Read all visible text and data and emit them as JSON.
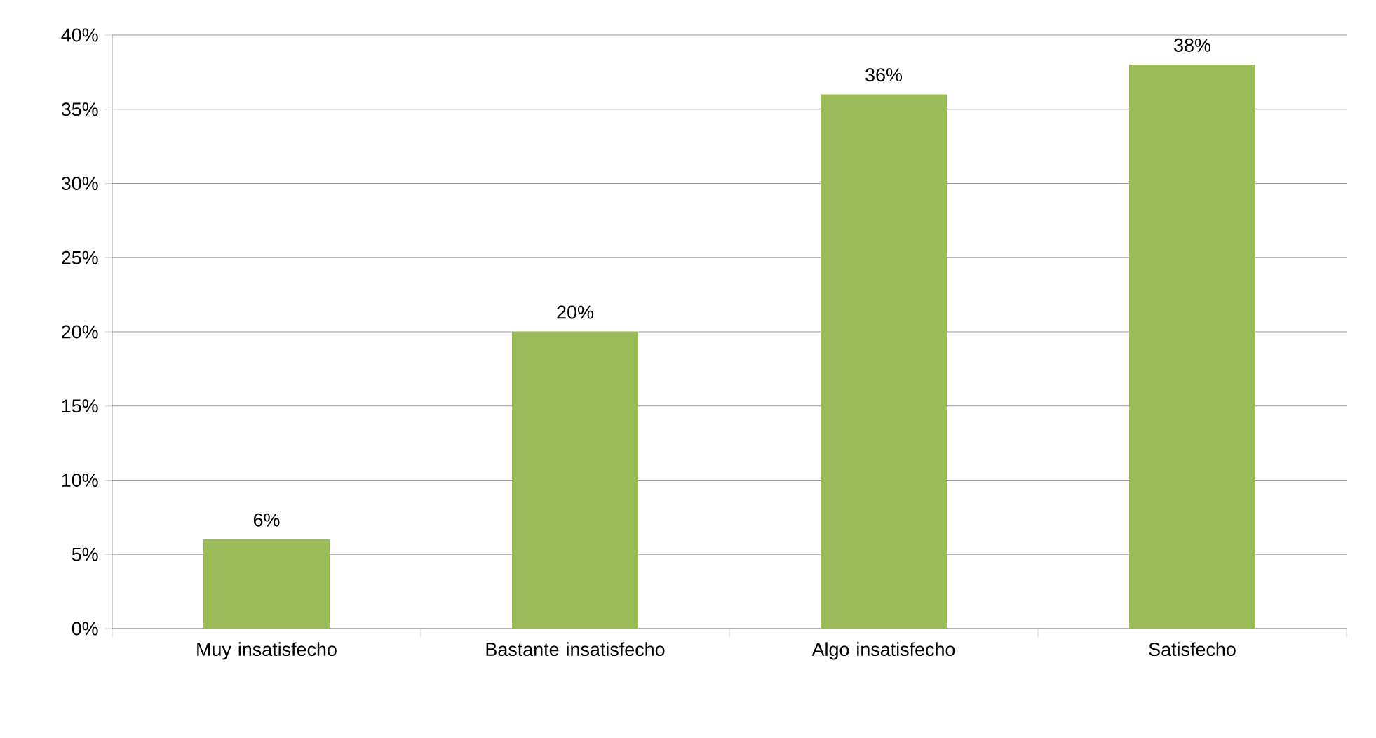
{
  "chart_data": {
    "type": "bar",
    "categories": [
      "Muy insatisfecho",
      "Bastante insatisfecho",
      "Algo insatisfecho",
      "Satisfecho"
    ],
    "values": [
      6,
      20,
      36,
      38
    ],
    "value_labels": [
      "6%",
      "20%",
      "36%",
      "38%"
    ],
    "color": "#9bbb59",
    "ylim": [
      0,
      40
    ],
    "yticks": [
      {
        "value": 0,
        "label": "0%"
      },
      {
        "value": 5,
        "label": "5%"
      },
      {
        "value": 10,
        "label": "10%"
      },
      {
        "value": 15,
        "label": "15%"
      },
      {
        "value": 20,
        "label": "20%"
      },
      {
        "value": 25,
        "label": "25%"
      },
      {
        "value": 30,
        "label": "30%"
      },
      {
        "value": 35,
        "label": "35%"
      },
      {
        "value": 40,
        "label": "40%"
      }
    ],
    "grid": "y"
  }
}
